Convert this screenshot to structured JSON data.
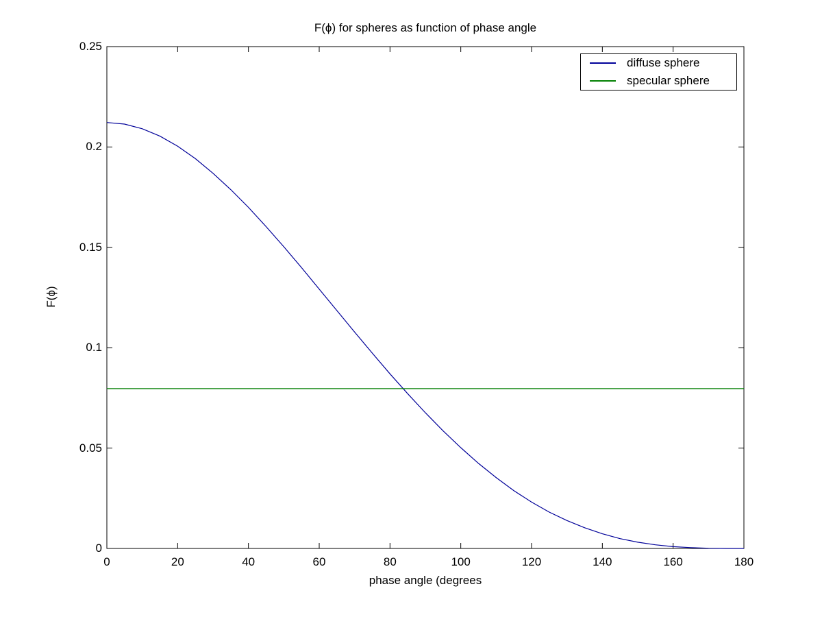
{
  "chart_data": {
    "type": "line",
    "title": "F(ϕ) for spheres as function of phase angle",
    "xlabel": "phase angle (degrees",
    "ylabel": "F(ϕ)",
    "xlim": [
      0,
      180
    ],
    "ylim": [
      0,
      0.25
    ],
    "xticks": [
      0,
      20,
      40,
      60,
      80,
      100,
      120,
      140,
      160,
      180
    ],
    "yticks": [
      0,
      0.05,
      0.1,
      0.15,
      0.2,
      0.25
    ],
    "grid": false,
    "legend_position": "top-right",
    "axis_color": "#000000",
    "background": "#ffffff",
    "series": [
      {
        "name": "diffuse sphere",
        "color": "#000099",
        "x": [
          0,
          5,
          10,
          15,
          20,
          25,
          30,
          35,
          40,
          45,
          50,
          55,
          60,
          65,
          70,
          75,
          80,
          85,
          90,
          95,
          100,
          105,
          110,
          115,
          120,
          125,
          130,
          135,
          140,
          145,
          150,
          155,
          160,
          165,
          170,
          175,
          180
        ],
        "values": [
          0.2122,
          0.2114,
          0.2091,
          0.2054,
          0.2004,
          0.1942,
          0.1869,
          0.1788,
          0.1699,
          0.1603,
          0.1503,
          0.1399,
          0.1292,
          0.1185,
          0.1078,
          0.0973,
          0.087,
          0.0771,
          0.0676,
          0.0586,
          0.0502,
          0.0424,
          0.0353,
          0.0288,
          0.0231,
          0.0181,
          0.0139,
          0.0103,
          0.0073,
          0.0049,
          0.0031,
          0.0018,
          0.0009,
          0.0004,
          0.0001,
          0.0,
          0.0
        ]
      },
      {
        "name": "specular sphere",
        "color": "#007f00",
        "x": [
          0,
          180
        ],
        "values": [
          0.0796,
          0.0796
        ]
      }
    ]
  }
}
